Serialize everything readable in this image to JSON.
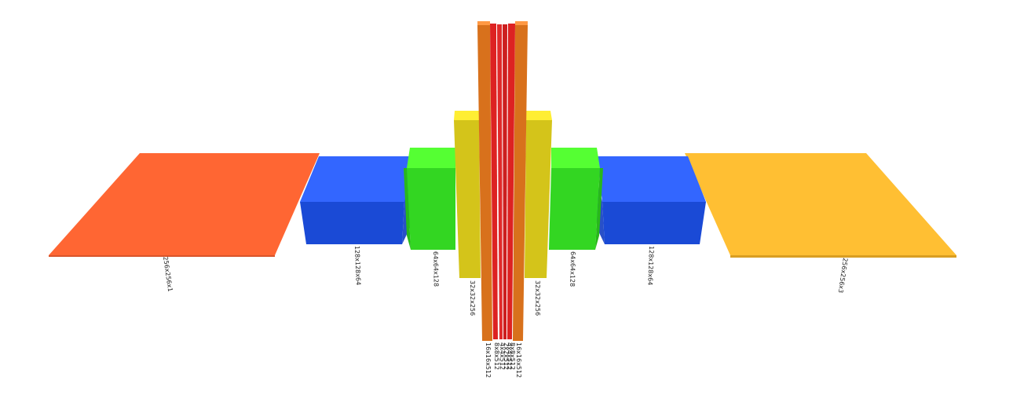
{
  "diagram": {
    "layers": [
      {
        "id": "input",
        "label": "256x256x1",
        "color": "#ff6633"
      },
      {
        "id": "enc1",
        "label": "128x128x64",
        "color": "#3366ff"
      },
      {
        "id": "enc2",
        "label": "64x64x128",
        "color": "#33dd22"
      },
      {
        "id": "enc3",
        "label": "32x32x256",
        "color": "#ddcc22"
      },
      {
        "id": "enc4",
        "label": "16x16x512",
        "color": "#dd7722"
      },
      {
        "id": "bott1",
        "label": "8x8x512",
        "color": "#dd2222"
      },
      {
        "id": "bott2",
        "label": "4x4x512",
        "color": "#dd2222"
      },
      {
        "id": "bott3",
        "label": "2x2x512",
        "color": "#dd2222"
      },
      {
        "id": "bott4",
        "label": "4x4x512",
        "color": "#dd2222"
      },
      {
        "id": "bott5",
        "label": "8x8x512",
        "color": "#dd2222"
      },
      {
        "id": "dec4",
        "label": "16x16x512",
        "color": "#dd7722"
      },
      {
        "id": "dec3",
        "label": "32x32x256",
        "color": "#ddcc22"
      },
      {
        "id": "dec2",
        "label": "64x64x128",
        "color": "#33dd22"
      },
      {
        "id": "dec1",
        "label": "128x128x64",
        "color": "#3366ff"
      },
      {
        "id": "output",
        "label": "256x256x3",
        "color": "#ffbf33"
      }
    ]
  }
}
